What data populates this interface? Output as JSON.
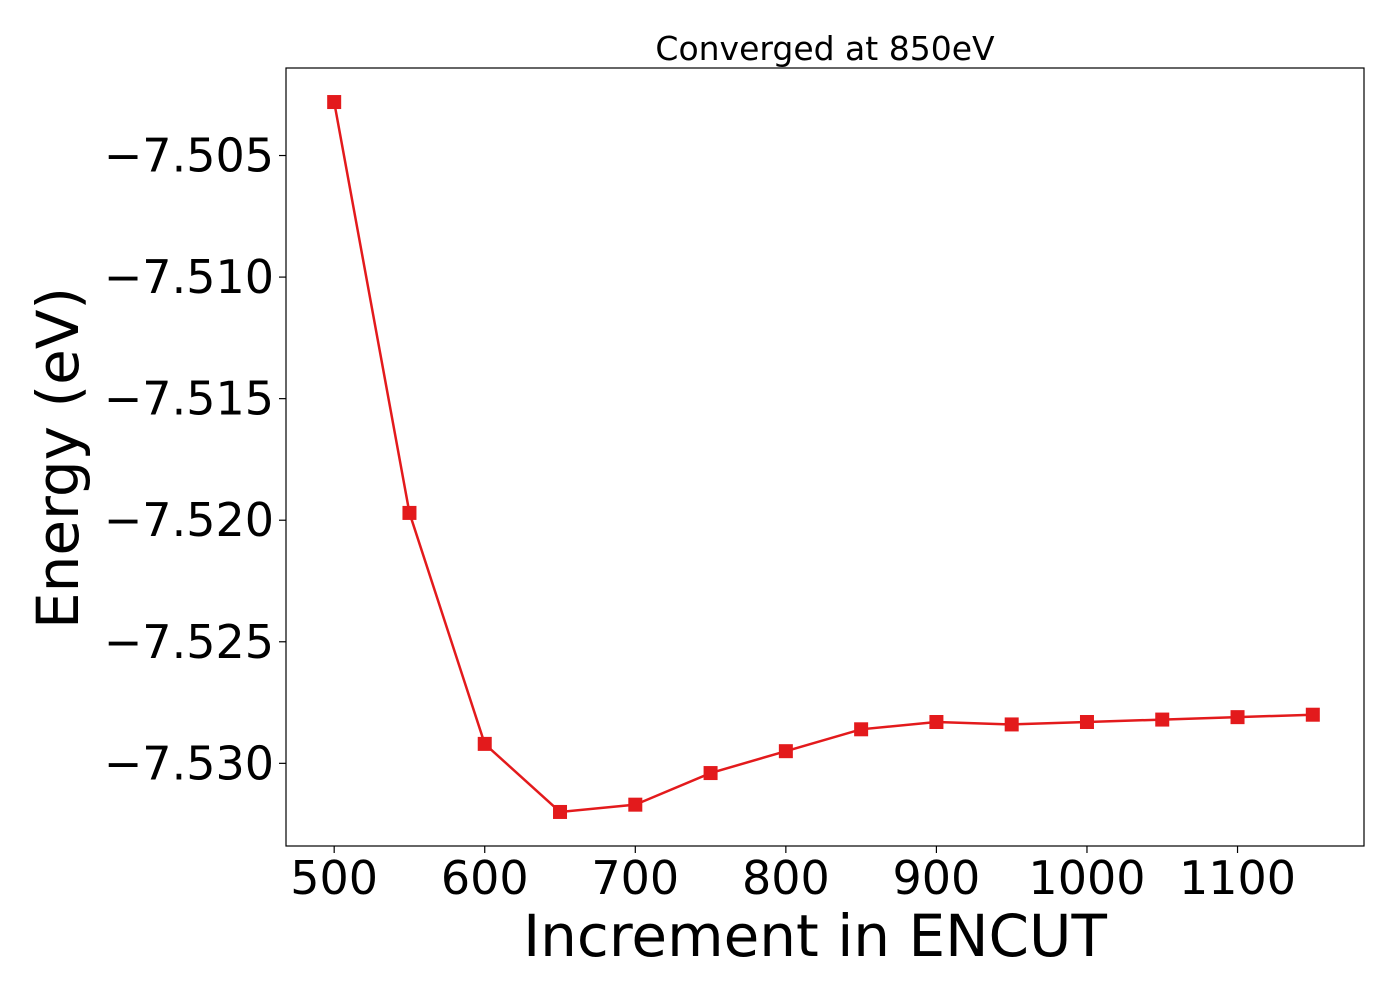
{
  "chart_data": {
    "type": "line",
    "title": "Converged at 850eV",
    "xlabel": "Increment in ENCUT",
    "ylabel": "Energy (eV)",
    "x": [
      500,
      550,
      600,
      650,
      700,
      750,
      800,
      850,
      900,
      950,
      1000,
      1050,
      1100,
      1150
    ],
    "series": [
      {
        "values": [
          -7.5028,
          -7.5197,
          -7.5292,
          -7.532,
          -7.5317,
          -7.5304,
          -7.5295,
          -7.5286,
          -7.5283,
          -7.5284,
          -7.5283,
          -7.5282,
          -7.5281,
          -7.528
        ],
        "color": "#e31a1c",
        "marker": "square"
      }
    ],
    "xlim": [
      468,
      1184
    ],
    "ylim": [
      -7.5334,
      -7.5014
    ],
    "xticks": [
      500,
      600,
      700,
      800,
      900,
      1000,
      1100
    ],
    "yticks": [
      -7.505,
      -7.51,
      -7.515,
      -7.52,
      -7.525,
      -7.53
    ],
    "xtick_labels": [
      "500",
      "600",
      "700",
      "800",
      "900",
      "1000",
      "1100"
    ],
    "ytick_labels": [
      "−7.505",
      "−7.510",
      "−7.515",
      "−7.520",
      "−7.525",
      "−7.530"
    ],
    "grid": false,
    "legend": "none"
  }
}
